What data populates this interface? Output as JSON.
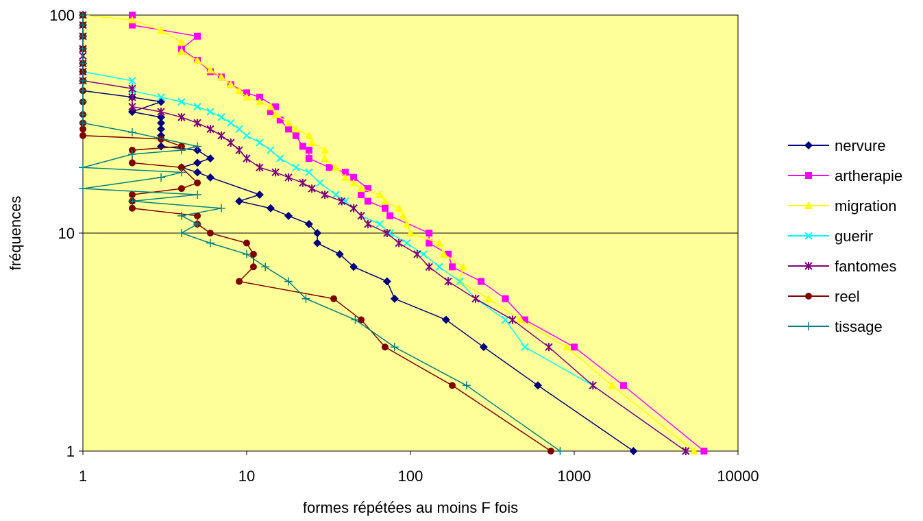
{
  "chart_data": {
    "type": "line",
    "xlabel": "formes répétées au moins F fois",
    "ylabel": "fréquences",
    "xscale": "log",
    "yscale": "log",
    "xlim": [
      1,
      10000
    ],
    "ylim": [
      1,
      100
    ],
    "x_ticks": [
      "1",
      "10",
      "100",
      "1000",
      "10000"
    ],
    "y_ticks": [
      "1",
      "10",
      "100"
    ],
    "grid": "horizontal major",
    "legend": "right",
    "plot_background": "#ffff99",
    "series": [
      {
        "name": "nervure",
        "color": "#000080",
        "marker": "diamond",
        "points": [
          [
            2300,
            1
          ],
          [
            600,
            2
          ],
          [
            280,
            3
          ],
          [
            165,
            4
          ],
          [
            80,
            5
          ],
          [
            72,
            6
          ],
          [
            45,
            7
          ],
          [
            37,
            8
          ],
          [
            27,
            9
          ],
          [
            27,
            10
          ],
          [
            24,
            11
          ],
          [
            18,
            12
          ],
          [
            14,
            13
          ],
          [
            9,
            14
          ],
          [
            12,
            15
          ],
          [
            6,
            18
          ],
          [
            5,
            19
          ],
          [
            4,
            20
          ],
          [
            5,
            21
          ],
          [
            6,
            22
          ],
          [
            5,
            24
          ],
          [
            3,
            25
          ],
          [
            3,
            28
          ],
          [
            3,
            30
          ],
          [
            3,
            32
          ],
          [
            3,
            34
          ],
          [
            2,
            36
          ],
          [
            3,
            40
          ],
          [
            2,
            42
          ],
          [
            1,
            45
          ],
          [
            1,
            50
          ],
          [
            1,
            55
          ],
          [
            1,
            60
          ],
          [
            1,
            70
          ],
          [
            1,
            80
          ],
          [
            1,
            100
          ]
        ]
      },
      {
        "name": "artherapie",
        "color": "#ff00ff",
        "marker": "square",
        "points": [
          [
            6200,
            1
          ],
          [
            2000,
            2
          ],
          [
            1000,
            3
          ],
          [
            500,
            4
          ],
          [
            380,
            5
          ],
          [
            270,
            6
          ],
          [
            180,
            7
          ],
          [
            170,
            8
          ],
          [
            130,
            9
          ],
          [
            130,
            10
          ],
          [
            75,
            12
          ],
          [
            70,
            13
          ],
          [
            55,
            14
          ],
          [
            50,
            15
          ],
          [
            55,
            16
          ],
          [
            45,
            18
          ],
          [
            40,
            19
          ],
          [
            32,
            20
          ],
          [
            24,
            22
          ],
          [
            24,
            24
          ],
          [
            22,
            25
          ],
          [
            20,
            28
          ],
          [
            18,
            30
          ],
          [
            16,
            33
          ],
          [
            14,
            36
          ],
          [
            15,
            38
          ],
          [
            12,
            42
          ],
          [
            10,
            44
          ],
          [
            8,
            48
          ],
          [
            7,
            52
          ],
          [
            6,
            55
          ],
          [
            5,
            62
          ],
          [
            4,
            70
          ],
          [
            5,
            80
          ],
          [
            2,
            90
          ],
          [
            2,
            100
          ]
        ]
      },
      {
        "name": "migration",
        "color": "#ffff00",
        "marker": "triangle",
        "points": [
          [
            5400,
            1
          ],
          [
            1700,
            2
          ],
          [
            900,
            3
          ],
          [
            470,
            4
          ],
          [
            300,
            5
          ],
          [
            200,
            6
          ],
          [
            210,
            7
          ],
          [
            160,
            8
          ],
          [
            150,
            9
          ],
          [
            100,
            10
          ],
          [
            95,
            11
          ],
          [
            90,
            12
          ],
          [
            85,
            13
          ],
          [
            70,
            14
          ],
          [
            65,
            15
          ],
          [
            50,
            16
          ],
          [
            45,
            17
          ],
          [
            40,
            18
          ],
          [
            35,
            20
          ],
          [
            30,
            22
          ],
          [
            30,
            24
          ],
          [
            25,
            26
          ],
          [
            24,
            28
          ],
          [
            20,
            30
          ],
          [
            18,
            32
          ],
          [
            15,
            35
          ],
          [
            14,
            38
          ],
          [
            12,
            40
          ],
          [
            10,
            42
          ],
          [
            9,
            45
          ],
          [
            8,
            48
          ],
          [
            7,
            52
          ],
          [
            6,
            56
          ],
          [
            5,
            62
          ],
          [
            4,
            68
          ],
          [
            4,
            75
          ],
          [
            3,
            85
          ],
          [
            2,
            95
          ],
          [
            1,
            100
          ]
        ]
      },
      {
        "name": "guerir",
        "color": "#00ffff",
        "marker": "x",
        "points": [
          [
            4800,
            1
          ],
          [
            1300,
            2
          ],
          [
            500,
            3
          ],
          [
            380,
            4
          ],
          [
            250,
            5
          ],
          [
            200,
            6
          ],
          [
            150,
            7
          ],
          [
            120,
            8
          ],
          [
            95,
            9
          ],
          [
            75,
            10
          ],
          [
            65,
            11
          ],
          [
            50,
            12
          ],
          [
            45,
            13
          ],
          [
            40,
            14
          ],
          [
            35,
            15
          ],
          [
            28,
            17
          ],
          [
            24,
            19
          ],
          [
            20,
            20
          ],
          [
            16,
            22
          ],
          [
            14,
            24
          ],
          [
            12,
            26
          ],
          [
            10,
            28
          ],
          [
            9,
            30
          ],
          [
            8,
            32
          ],
          [
            7,
            34
          ],
          [
            6,
            36
          ],
          [
            5,
            38
          ],
          [
            4,
            40
          ],
          [
            3,
            42
          ],
          [
            2,
            45
          ],
          [
            2,
            50
          ],
          [
            1,
            55
          ],
          [
            1,
            60
          ],
          [
            1,
            70
          ],
          [
            1,
            80
          ],
          [
            1,
            90
          ],
          [
            1,
            100
          ]
        ]
      },
      {
        "name": "fantomes",
        "color": "#800080",
        "marker": "star",
        "points": [
          [
            4800,
            1
          ],
          [
            1300,
            2
          ],
          [
            700,
            3
          ],
          [
            420,
            4
          ],
          [
            250,
            5
          ],
          [
            170,
            6
          ],
          [
            130,
            7
          ],
          [
            110,
            8
          ],
          [
            85,
            9
          ],
          [
            72,
            10
          ],
          [
            55,
            11
          ],
          [
            50,
            12
          ],
          [
            45,
            13
          ],
          [
            38,
            14
          ],
          [
            30,
            15
          ],
          [
            25,
            16
          ],
          [
            22,
            17
          ],
          [
            18,
            18
          ],
          [
            15,
            19
          ],
          [
            12,
            20
          ],
          [
            10,
            22
          ],
          [
            9,
            24
          ],
          [
            8,
            26
          ],
          [
            7,
            28
          ],
          [
            6,
            30
          ],
          [
            5,
            32
          ],
          [
            4,
            34
          ],
          [
            3,
            36
          ],
          [
            2,
            38
          ],
          [
            2,
            42
          ],
          [
            2,
            46
          ],
          [
            1,
            50
          ],
          [
            1,
            55
          ],
          [
            1,
            60
          ],
          [
            1,
            65
          ],
          [
            1,
            70
          ],
          [
            1,
            80
          ],
          [
            1,
            90
          ],
          [
            1,
            100
          ]
        ]
      },
      {
        "name": "reel",
        "color": "#800000",
        "marker": "circle",
        "points": [
          [
            720,
            1
          ],
          [
            180,
            2
          ],
          [
            70,
            3
          ],
          [
            50,
            4
          ],
          [
            34,
            5
          ],
          [
            9,
            6
          ],
          [
            11,
            7
          ],
          [
            11,
            8
          ],
          [
            10,
            9
          ],
          [
            6,
            10
          ],
          [
            5,
            11
          ],
          [
            5,
            12
          ],
          [
            2,
            13
          ],
          [
            2,
            14
          ],
          [
            2,
            15
          ],
          [
            4,
            16
          ],
          [
            5,
            17
          ],
          [
            4,
            20
          ],
          [
            2,
            21
          ],
          [
            2,
            24
          ],
          [
            4,
            25
          ],
          [
            3,
            27
          ],
          [
            1,
            28
          ],
          [
            1,
            30
          ],
          [
            1,
            32
          ],
          [
            1,
            35
          ],
          [
            1,
            40
          ],
          [
            1,
            45
          ],
          [
            1,
            50
          ],
          [
            1,
            55
          ],
          [
            1,
            60
          ],
          [
            1,
            70
          ],
          [
            1,
            80
          ],
          [
            1,
            90
          ],
          [
            1,
            100
          ]
        ]
      },
      {
        "name": "tissage",
        "color": "#008080",
        "marker": "plus",
        "points": [
          [
            820,
            1
          ],
          [
            220,
            2
          ],
          [
            80,
            3
          ],
          [
            46,
            4
          ],
          [
            23,
            5
          ],
          [
            18,
            6
          ],
          [
            13,
            7
          ],
          [
            10,
            8
          ],
          [
            6,
            9
          ],
          [
            4,
            10
          ],
          [
            5,
            11
          ],
          [
            4,
            12
          ],
          [
            7,
            13
          ],
          [
            2,
            14
          ],
          [
            5,
            15
          ],
          [
            1,
            16
          ],
          [
            3,
            18
          ],
          [
            4,
            19
          ],
          [
            1,
            20
          ],
          [
            2,
            23
          ],
          [
            4,
            24
          ],
          [
            5,
            25
          ],
          [
            2,
            29
          ],
          [
            1,
            32
          ],
          [
            1,
            35
          ],
          [
            1,
            40
          ],
          [
            1,
            45
          ],
          [
            1,
            50
          ],
          [
            1,
            60
          ],
          [
            1,
            70
          ],
          [
            1,
            80
          ],
          [
            1,
            90
          ],
          [
            1,
            100
          ]
        ]
      }
    ]
  }
}
